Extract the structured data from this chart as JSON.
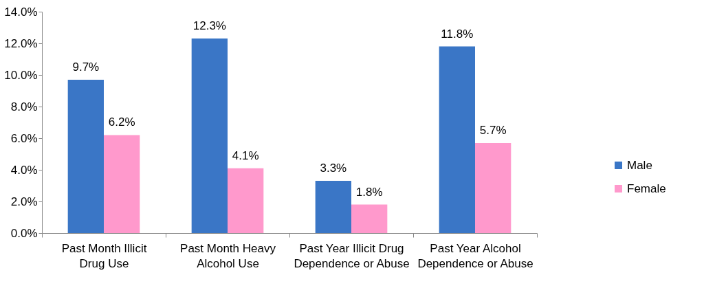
{
  "chart_data": {
    "type": "bar",
    "categories": [
      "Past Month Illicit Drug Use",
      "Past Month Heavy Alcohol Use",
      "Past Year Illicit Drug Dependence or Abuse",
      "Past Year Alcohol Dependence or Abuse"
    ],
    "series": [
      {
        "name": "Male",
        "color": "#3a76c6",
        "values": [
          9.7,
          12.3,
          3.3,
          11.8
        ],
        "value_labels": [
          "9.7%",
          "12.3%",
          "3.3%",
          "11.8%"
        ]
      },
      {
        "name": "Female",
        "color": "#ff99cc",
        "values": [
          6.2,
          4.1,
          1.8,
          5.7
        ],
        "value_labels": [
          "6.2%",
          "4.1%",
          "1.8%",
          "5.7%"
        ]
      }
    ],
    "ylim": [
      0,
      14
    ],
    "yticks": [
      {
        "value": 0,
        "label": "0.0%"
      },
      {
        "value": 2,
        "label": "2.0%"
      },
      {
        "value": 4,
        "label": "4.0%"
      },
      {
        "value": 6,
        "label": "6.0%"
      },
      {
        "value": 8,
        "label": "8.0%"
      },
      {
        "value": 10,
        "label": "10.0%"
      },
      {
        "value": 12,
        "label": "12.0%"
      },
      {
        "value": 14,
        "label": "14.0%"
      }
    ],
    "grid": false,
    "legend": "right"
  }
}
